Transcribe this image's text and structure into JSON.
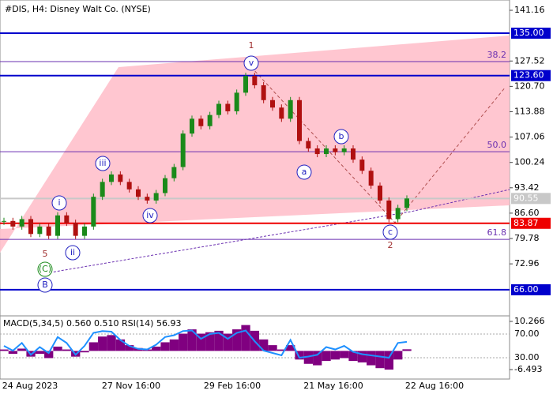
{
  "chart_data": {
    "type": "candlestick",
    "title": "#DIS, H4:  Disney Walt Co. (NYSE)",
    "ylim": [
      58.97,
      143.93
    ],
    "yticks": [
      141.16,
      127.52,
      {
        "value": 120.7,
        "label": "120.70"
      },
      113.88,
      107.06,
      100.24,
      93.42,
      {
        "value": 86.6,
        "label": "86.60"
      },
      79.78,
      72.96
    ],
    "x_labels": [
      "24 Aug 2023",
      "27 Nov 16:00",
      "29 Feb 16:00",
      "21 May 16:00",
      "22 Aug 16:00"
    ],
    "closes": [
      84.5,
      83,
      85,
      81,
      83,
      80.5,
      86,
      84,
      80.5,
      83,
      91,
      95,
      97,
      95,
      93,
      91,
      90,
      92,
      96,
      99,
      108,
      112,
      110,
      113,
      116,
      114,
      119,
      123.5,
      121,
      117,
      115,
      112,
      117,
      106,
      104,
      102.5,
      104,
      103,
      104,
      101,
      98,
      94,
      90,
      85,
      88,
      90.55
    ],
    "up_color": "#1a8a1a",
    "down_color": "#b01010",
    "levels": [
      {
        "value": 135,
        "label": "135.00",
        "color": "#0000cc"
      },
      {
        "value": 123.6,
        "label": "123.60",
        "color": "#0000cc"
      },
      {
        "value": 90.55,
        "label": "90.55",
        "color": "#c8c8c8"
      },
      {
        "value": 83.87,
        "label": "83.87",
        "color": "#ee0000"
      },
      {
        "value": 66,
        "label": "66.00",
        "color": "#0000cc"
      }
    ],
    "fib_levels": [
      {
        "level": "38.2",
        "price": 127.35
      },
      {
        "level": "50.0",
        "price": 103.13
      },
      {
        "level": "61.8",
        "price": 79.55
      }
    ],
    "annotations": [
      "1",
      "v",
      "iii",
      "i",
      "ii",
      "iv",
      "5",
      "(C)",
      "B",
      "a",
      "b",
      "c",
      "2"
    ],
    "indicator": {
      "title": "MACD(5,34,5) 0.560 0.510 RSI(14) 56.93",
      "macd_ylim": [
        -9.24,
        12.19
      ],
      "macd_ticks": [
        10.266,
        -6.493
      ],
      "rsi_ylim": [
        -3.3,
        100.7
      ],
      "rsi_ticks": [
        {
          "value": 70,
          "label": "70.00"
        },
        {
          "value": 30,
          "label": "30.00"
        }
      ],
      "macd_color": "#800080",
      "rsi_color": "#1e90ff",
      "macd": [
        0.5,
        -1,
        0.8,
        -2,
        -1,
        -2.5,
        1.5,
        0.5,
        -2,
        -0.5,
        3,
        5,
        5.5,
        4,
        2,
        1,
        0.5,
        1.5,
        3,
        4,
        6,
        7.5,
        6,
        6.5,
        7,
        6,
        7.5,
        9,
        7,
        4,
        2,
        0.5,
        2,
        -3,
        -4.5,
        -5,
        -3.5,
        -3,
        -2.5,
        -3.5,
        -4,
        -5,
        -6,
        -6.5,
        -3,
        0.56
      ],
      "rsi": [
        50,
        42,
        55,
        35,
        48,
        38,
        65,
        55,
        35,
        50,
        72,
        75,
        74,
        60,
        50,
        45,
        44,
        52,
        65,
        68,
        75,
        76,
        62,
        70,
        72,
        62,
        72,
        76,
        58,
        42,
        38,
        34,
        60,
        30,
        32,
        35,
        48,
        44,
        50,
        40,
        36,
        34,
        32,
        30,
        55,
        56.93
      ]
    }
  }
}
